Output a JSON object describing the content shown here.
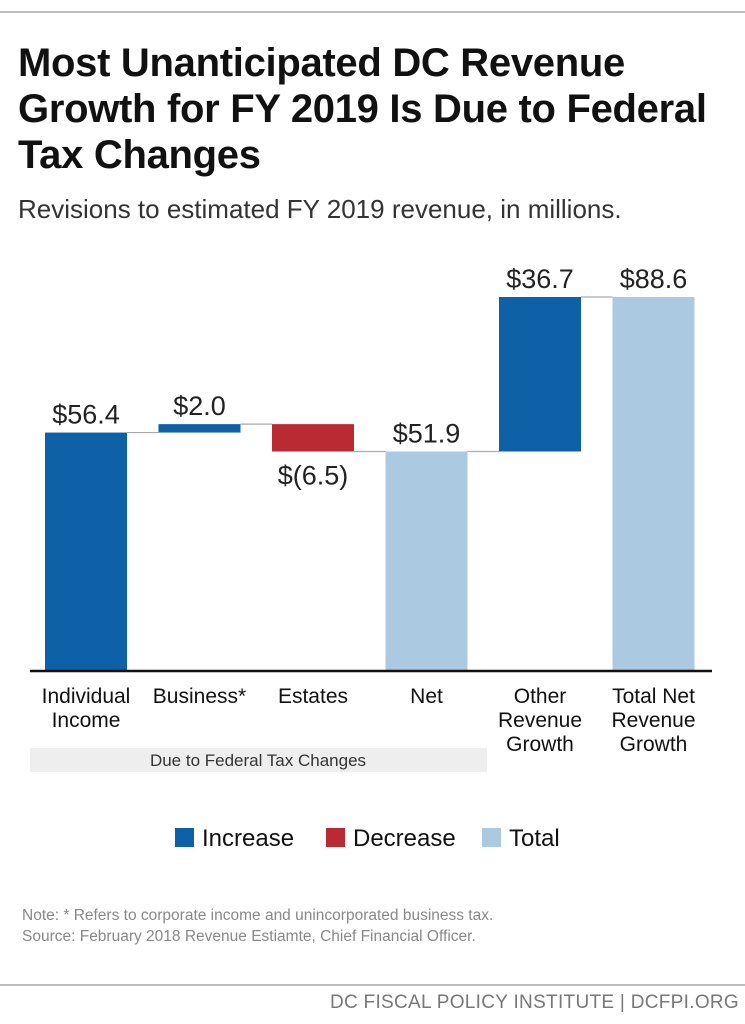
{
  "title": "Most Unanticipated DC Revenue Growth for FY 2019 Is Due to Federal Tax Changes",
  "subtitle": "Revisions to estimated FY 2019 revenue, in millions.",
  "chart_data": {
    "type": "bar",
    "subtype": "waterfall",
    "categories": [
      "Individual Income",
      "Business*",
      "Estates",
      "Net",
      "Other Revenue Growth",
      "Total Net Revenue Growth"
    ],
    "category_lines": [
      [
        "Individual",
        "Income"
      ],
      [
        "Business*"
      ],
      [
        "Estates"
      ],
      [
        "Net"
      ],
      [
        "Other",
        "Revenue",
        "Growth"
      ],
      [
        "Total Net",
        "Revenue",
        "Growth"
      ]
    ],
    "values": [
      56.4,
      2.0,
      -6.5,
      51.9,
      36.7,
      88.6
    ],
    "kinds": [
      "Increase",
      "Increase",
      "Decrease",
      "Total",
      "Increase",
      "Total"
    ],
    "data_labels": [
      "$56.4",
      "$2.0",
      "$(6.5)",
      "$51.9",
      "$36.7",
      "$88.6"
    ],
    "group_label": "Due to Federal Tax Changes",
    "legend": [
      {
        "name": "Increase",
        "color": "#0e61a6"
      },
      {
        "name": "Decrease",
        "color": "#b92a32"
      },
      {
        "name": "Total",
        "color": "#abc9e1"
      }
    ],
    "legend_position": "bottom",
    "ylim": [
      0,
      88.6
    ],
    "grid": false,
    "xlabel": "",
    "ylabel": ""
  },
  "notes": {
    "note": "Note: * Refers to corporate income and unincorporated business tax.",
    "source": "Source: February 2018 Revenue Estiamte, Chief Financial Officer."
  },
  "footer": "DC FISCAL POLICY INSTITUTE | DCFPI.ORG"
}
